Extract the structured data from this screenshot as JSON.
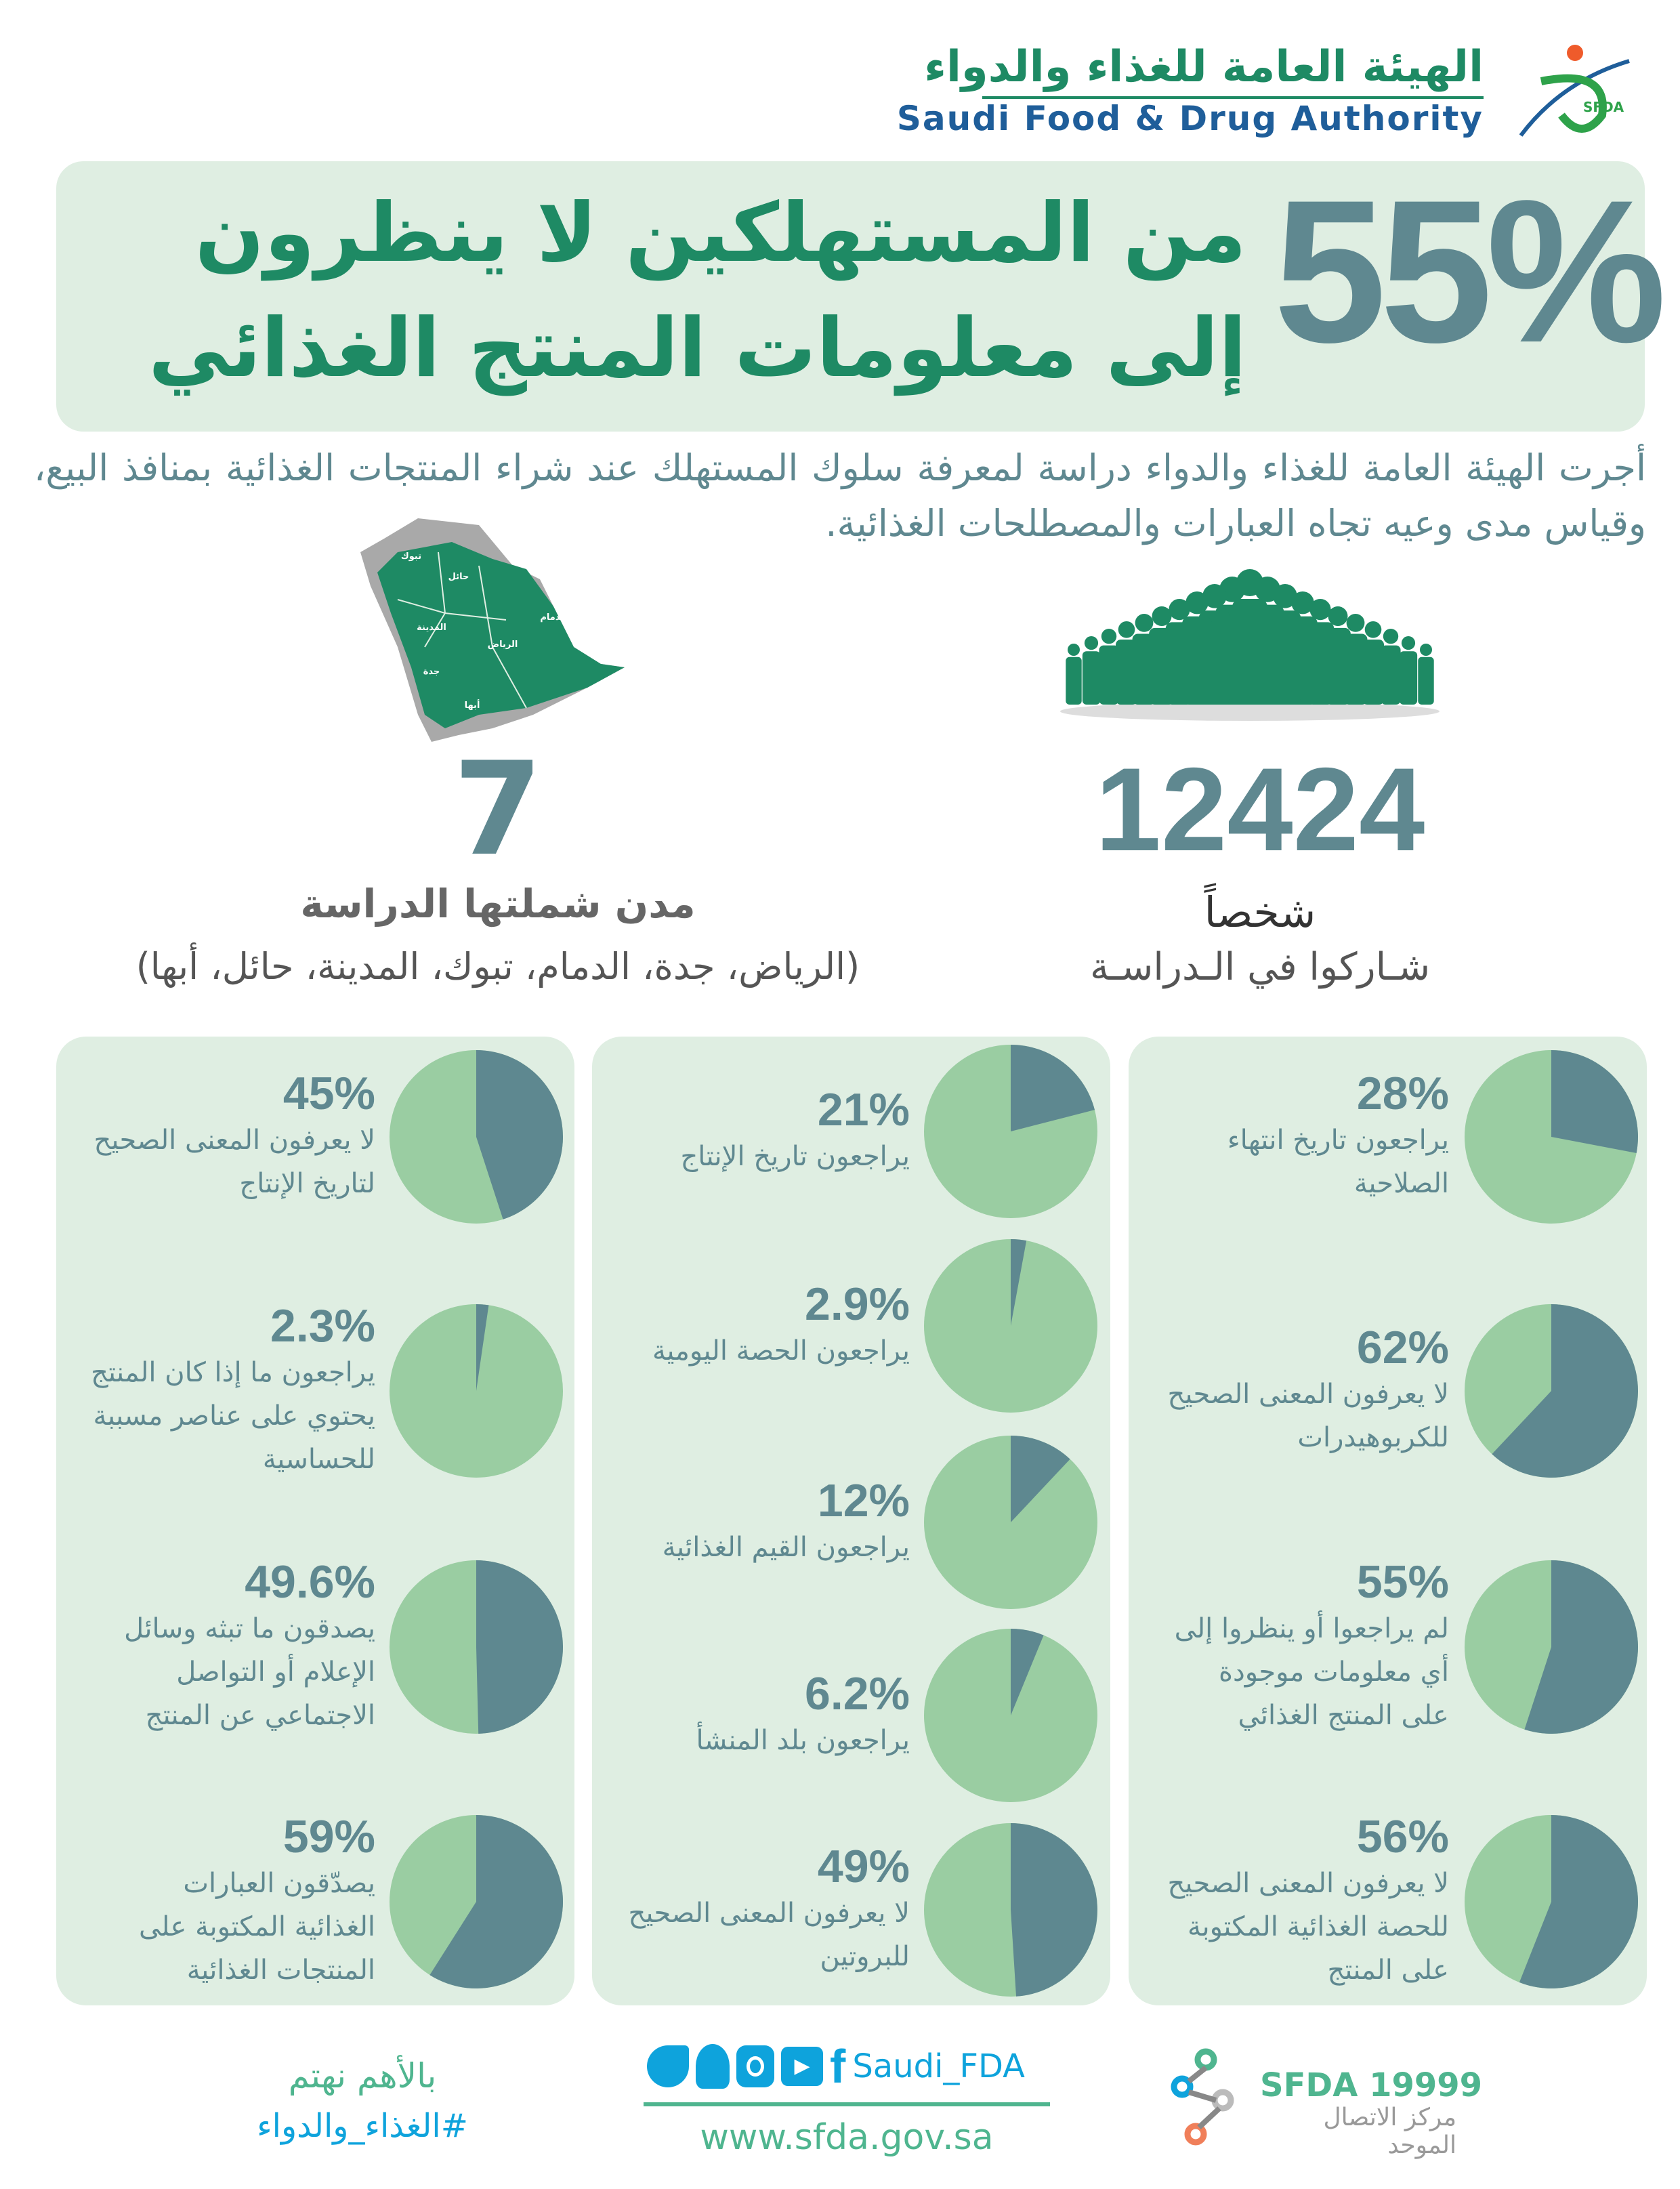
{
  "logo": {
    "arabic": "الهيئة العامة للغذاء والدواء",
    "english": "Saudi Food & Drug Authority",
    "emblem_text": "SFDA"
  },
  "header": {
    "big_percent": "55%",
    "headline_line1": "من المستهلكين لا ينظرون",
    "headline_line2": "إلى معلومات المنتج الغذائي"
  },
  "intro": "أجرت الهيئة العامة للغذاء والدواء دراسة لمعرفة سلوك المستهلك عند شراء المنتجات الغذائية بمنافذ البيع، وقياس مدى وعيه تجاه العبارات والمصطلحات الغذائية.",
  "map": {
    "labels": [
      "تبوك",
      "حائل",
      "المدينة",
      "الرياض",
      "الدمام",
      "جدة",
      "أبها"
    ]
  },
  "cities": {
    "count": "7",
    "title": "مدن شملتها الدراسة",
    "list": "(الرياض، جدة، الدمام، تبوك، المدينة، حائل، أبها)"
  },
  "participants": {
    "count": "12424",
    "unit": "شخصاً",
    "caption": "شـاركوا في الـدراسـة"
  },
  "colors": {
    "dark": "#5e8890",
    "light": "#9acda2",
    "panel": "#dfeee2",
    "green": "#1e8a64"
  },
  "panels": [
    {
      "stats": [
        {
          "percent": "28%",
          "value": 28,
          "lines": [
            "يراجعون تاريخ انتهاء",
            "الصلاحية"
          ]
        },
        {
          "percent": "62%",
          "value": 62,
          "lines": [
            "لا يعرفون المعنى الصحيح",
            "للكربوهيدرات"
          ]
        },
        {
          "percent": "55%",
          "value": 55,
          "lines": [
            "لم يراجعوا أو ينظروا إلى",
            "أي معلومات موجودة",
            "على المنتج الغذائي"
          ]
        },
        {
          "percent": "56%",
          "value": 56,
          "lines": [
            "لا يعرفون المعنى الصحيح",
            "للحصة الغذائية المكتوبة",
            "على المنتج"
          ]
        }
      ]
    },
    {
      "stats": [
        {
          "percent": "21%",
          "value": 21,
          "lines": [
            "يراجعون تاريخ الإنتاج"
          ]
        },
        {
          "percent": "2.9%",
          "value": 2.9,
          "lines": [
            "يراجعون الحصة اليومية"
          ]
        },
        {
          "percent": "12%",
          "value": 12,
          "lines": [
            "يراجعون القيم الغذائية"
          ]
        },
        {
          "percent": "6.2%",
          "value": 6.2,
          "lines": [
            "يراجعون بلد المنشأ"
          ]
        },
        {
          "percent": "49%",
          "value": 49,
          "lines": [
            "لا يعرفون المعنى الصحيح",
            "للبروتين"
          ]
        }
      ]
    },
    {
      "stats": [
        {
          "percent": "45%",
          "value": 45,
          "lines": [
            "لا يعرفون المعنى الصحيح",
            "لتاريخ الإنتاج"
          ]
        },
        {
          "percent": "2.3%",
          "value": 2.3,
          "lines": [
            "يراجعون ما إذا كان المنتج",
            "يحتوي على عناصر مسببة",
            "للحساسية"
          ]
        },
        {
          "percent": "49.6%",
          "value": 49.6,
          "lines": [
            "يصدقون ما تبثه وسائل",
            "الإعلام أو التواصل",
            "الاجتماعي عن المنتج"
          ]
        },
        {
          "percent": "59%",
          "value": 59,
          "lines": [
            "يصدّقون العبارات",
            "الغذائية المكتوبة على",
            "المنتجات الغذائية"
          ]
        }
      ]
    }
  ],
  "footer": {
    "slogan": "بالأهم نهتم",
    "hashtag": "#الغذاء_والدواء",
    "social_handle": "Saudi_FDA",
    "social_icons": [
      "twitter-icon",
      "snapchat-icon",
      "instagram-icon",
      "youtube-icon",
      "facebook-icon"
    ],
    "website": "www.sfda.gov.sa",
    "call_center_number": "SFDA 19999",
    "call_center_label": "مركز الاتصال الموحد"
  }
}
